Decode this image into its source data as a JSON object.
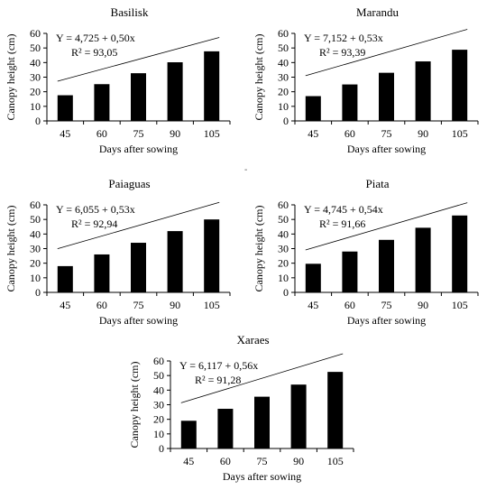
{
  "separator": "-",
  "chart_data": [
    {
      "type": "bar",
      "title": "Basilisk",
      "xlabel": "Days after sowing",
      "ylabel": "Canopy height (cm)",
      "categories": [
        "45",
        "60",
        "75",
        "90",
        "105"
      ],
      "values": [
        17.6,
        25.2,
        32.7,
        40.2,
        47.7
      ],
      "ylim": [
        0,
        60
      ],
      "yticks": [
        "0",
        "10",
        "20",
        "30",
        "40",
        "50",
        "60"
      ],
      "equation": "Y = 4,725 + 0,50x",
      "r2": "R² = 93,05",
      "trendline": {
        "intercept": 4.725,
        "slope": 0.5
      }
    },
    {
      "type": "bar",
      "title": "Marandu",
      "xlabel": "Days after sowing",
      "ylabel": "Canopy height (cm)",
      "categories": [
        "45",
        "60",
        "75",
        "90",
        "105"
      ],
      "values": [
        17.0,
        25.0,
        33.0,
        40.8,
        48.8
      ],
      "ylim": [
        0,
        60
      ],
      "yticks": [
        "0",
        "10",
        "20",
        "30",
        "40",
        "50",
        "60"
      ],
      "equation": "Y = 7,152 + 0,53x",
      "r2": "R² = 93,39",
      "trendline": {
        "intercept": 7.152,
        "slope": 0.53
      }
    },
    {
      "type": "bar",
      "title": "Paiaguas",
      "xlabel": "Days after sowing",
      "ylabel": "Canopy height (cm)",
      "categories": [
        "45",
        "60",
        "75",
        "90",
        "105"
      ],
      "values": [
        18.0,
        26.0,
        34.0,
        42.0,
        50.0
      ],
      "ylim": [
        0,
        60
      ],
      "yticks": [
        "0",
        "10",
        "20",
        "30",
        "40",
        "50",
        "60"
      ],
      "equation": "Y = 6,055 + 0,53x",
      "r2": "R² = 92,94",
      "trendline": {
        "intercept": 6.055,
        "slope": 0.53
      }
    },
    {
      "type": "bar",
      "title": "Piata",
      "xlabel": "Days after sowing",
      "ylabel": "Canopy height (cm)",
      "categories": [
        "45",
        "60",
        "75",
        "90",
        "105"
      ],
      "values": [
        19.6,
        28.0,
        36.0,
        44.3,
        52.7
      ],
      "ylim": [
        0,
        60
      ],
      "yticks": [
        "0",
        "10",
        "20",
        "30",
        "40",
        "50",
        "60"
      ],
      "equation": "Y = 4,745 + 0,54x",
      "r2": "R² = 91,66",
      "trendline": {
        "intercept": 4.745,
        "slope": 0.54
      }
    },
    {
      "type": "bar",
      "title": "Xaraes",
      "xlabel": "Days after sowing",
      "ylabel": "Canopy height (cm)",
      "categories": [
        "45",
        "60",
        "75",
        "90",
        "105"
      ],
      "values": [
        19.0,
        27.2,
        35.5,
        43.8,
        52.5
      ],
      "ylim": [
        0,
        60
      ],
      "yticks": [
        "0",
        "10",
        "20",
        "30",
        "40",
        "50",
        "60"
      ],
      "equation": "Y = 6,117 + 0,56x",
      "r2": "R² = 91,28",
      "trendline": {
        "intercept": 6.117,
        "slope": 0.56
      }
    }
  ]
}
